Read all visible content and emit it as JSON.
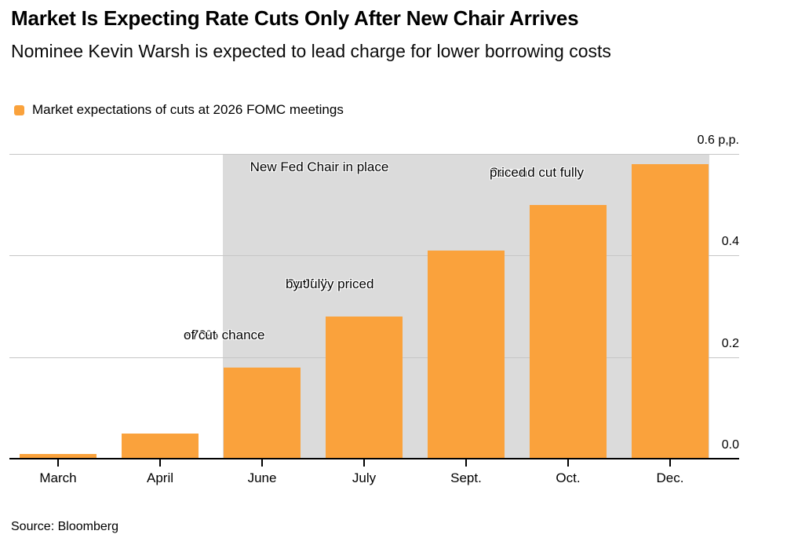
{
  "header": {
    "title": "Market Is Expecting Rate Cuts Only After New Chair Arrives",
    "subtitle": "Nominee Kevin Warsh is expected to lead charge for lower borrowing costs"
  },
  "legend": {
    "label": "Market expectations of cuts at 2026 FOMC meetings",
    "swatch_color": "#FAA23C"
  },
  "footer": {
    "source": "Source: Bloomberg"
  },
  "colors": {
    "bar": "#FAA23C",
    "shaded_region": "#DBDBDB",
    "gridline": "#C6C6C6",
    "axis": "#000000",
    "background": "#FFFFFF"
  },
  "chart_data": {
    "type": "bar",
    "title": "Market expectations of cuts at 2026 FOMC meetings",
    "categories": [
      "March",
      "April",
      "June",
      "July",
      "Sept.",
      "Oct.",
      "Dec."
    ],
    "values": [
      0.01,
      0.05,
      0.18,
      0.28,
      0.41,
      0.5,
      0.58
    ],
    "unit": "p,p.",
    "xlabel": "",
    "ylabel": "0.6 p,p.",
    "ylim": [
      0,
      0.6
    ],
    "yticks": [
      {
        "value": 0.0,
        "label": "0.0"
      },
      {
        "value": 0.2,
        "label": "0.2"
      },
      {
        "value": 0.4,
        "label": "0.4"
      },
      {
        "value": 0.6,
        "label": "0.6 p,p."
      }
    ],
    "grid": "horizontal",
    "y_axis_side": "right",
    "shaded_region": {
      "label": "New Fed Chair in place",
      "from_category": "June",
      "to_category": "Dec."
    },
    "annotations": [
      {
        "category": "June",
        "lines": [
          "~70% chance",
          "of cut"
        ]
      },
      {
        "category": "July",
        "lines": [
          "Cut fully priced",
          "by July"
        ]
      },
      {
        "category": "Oct.",
        "lines": [
          "Second cut fully",
          "priced"
        ]
      }
    ]
  }
}
